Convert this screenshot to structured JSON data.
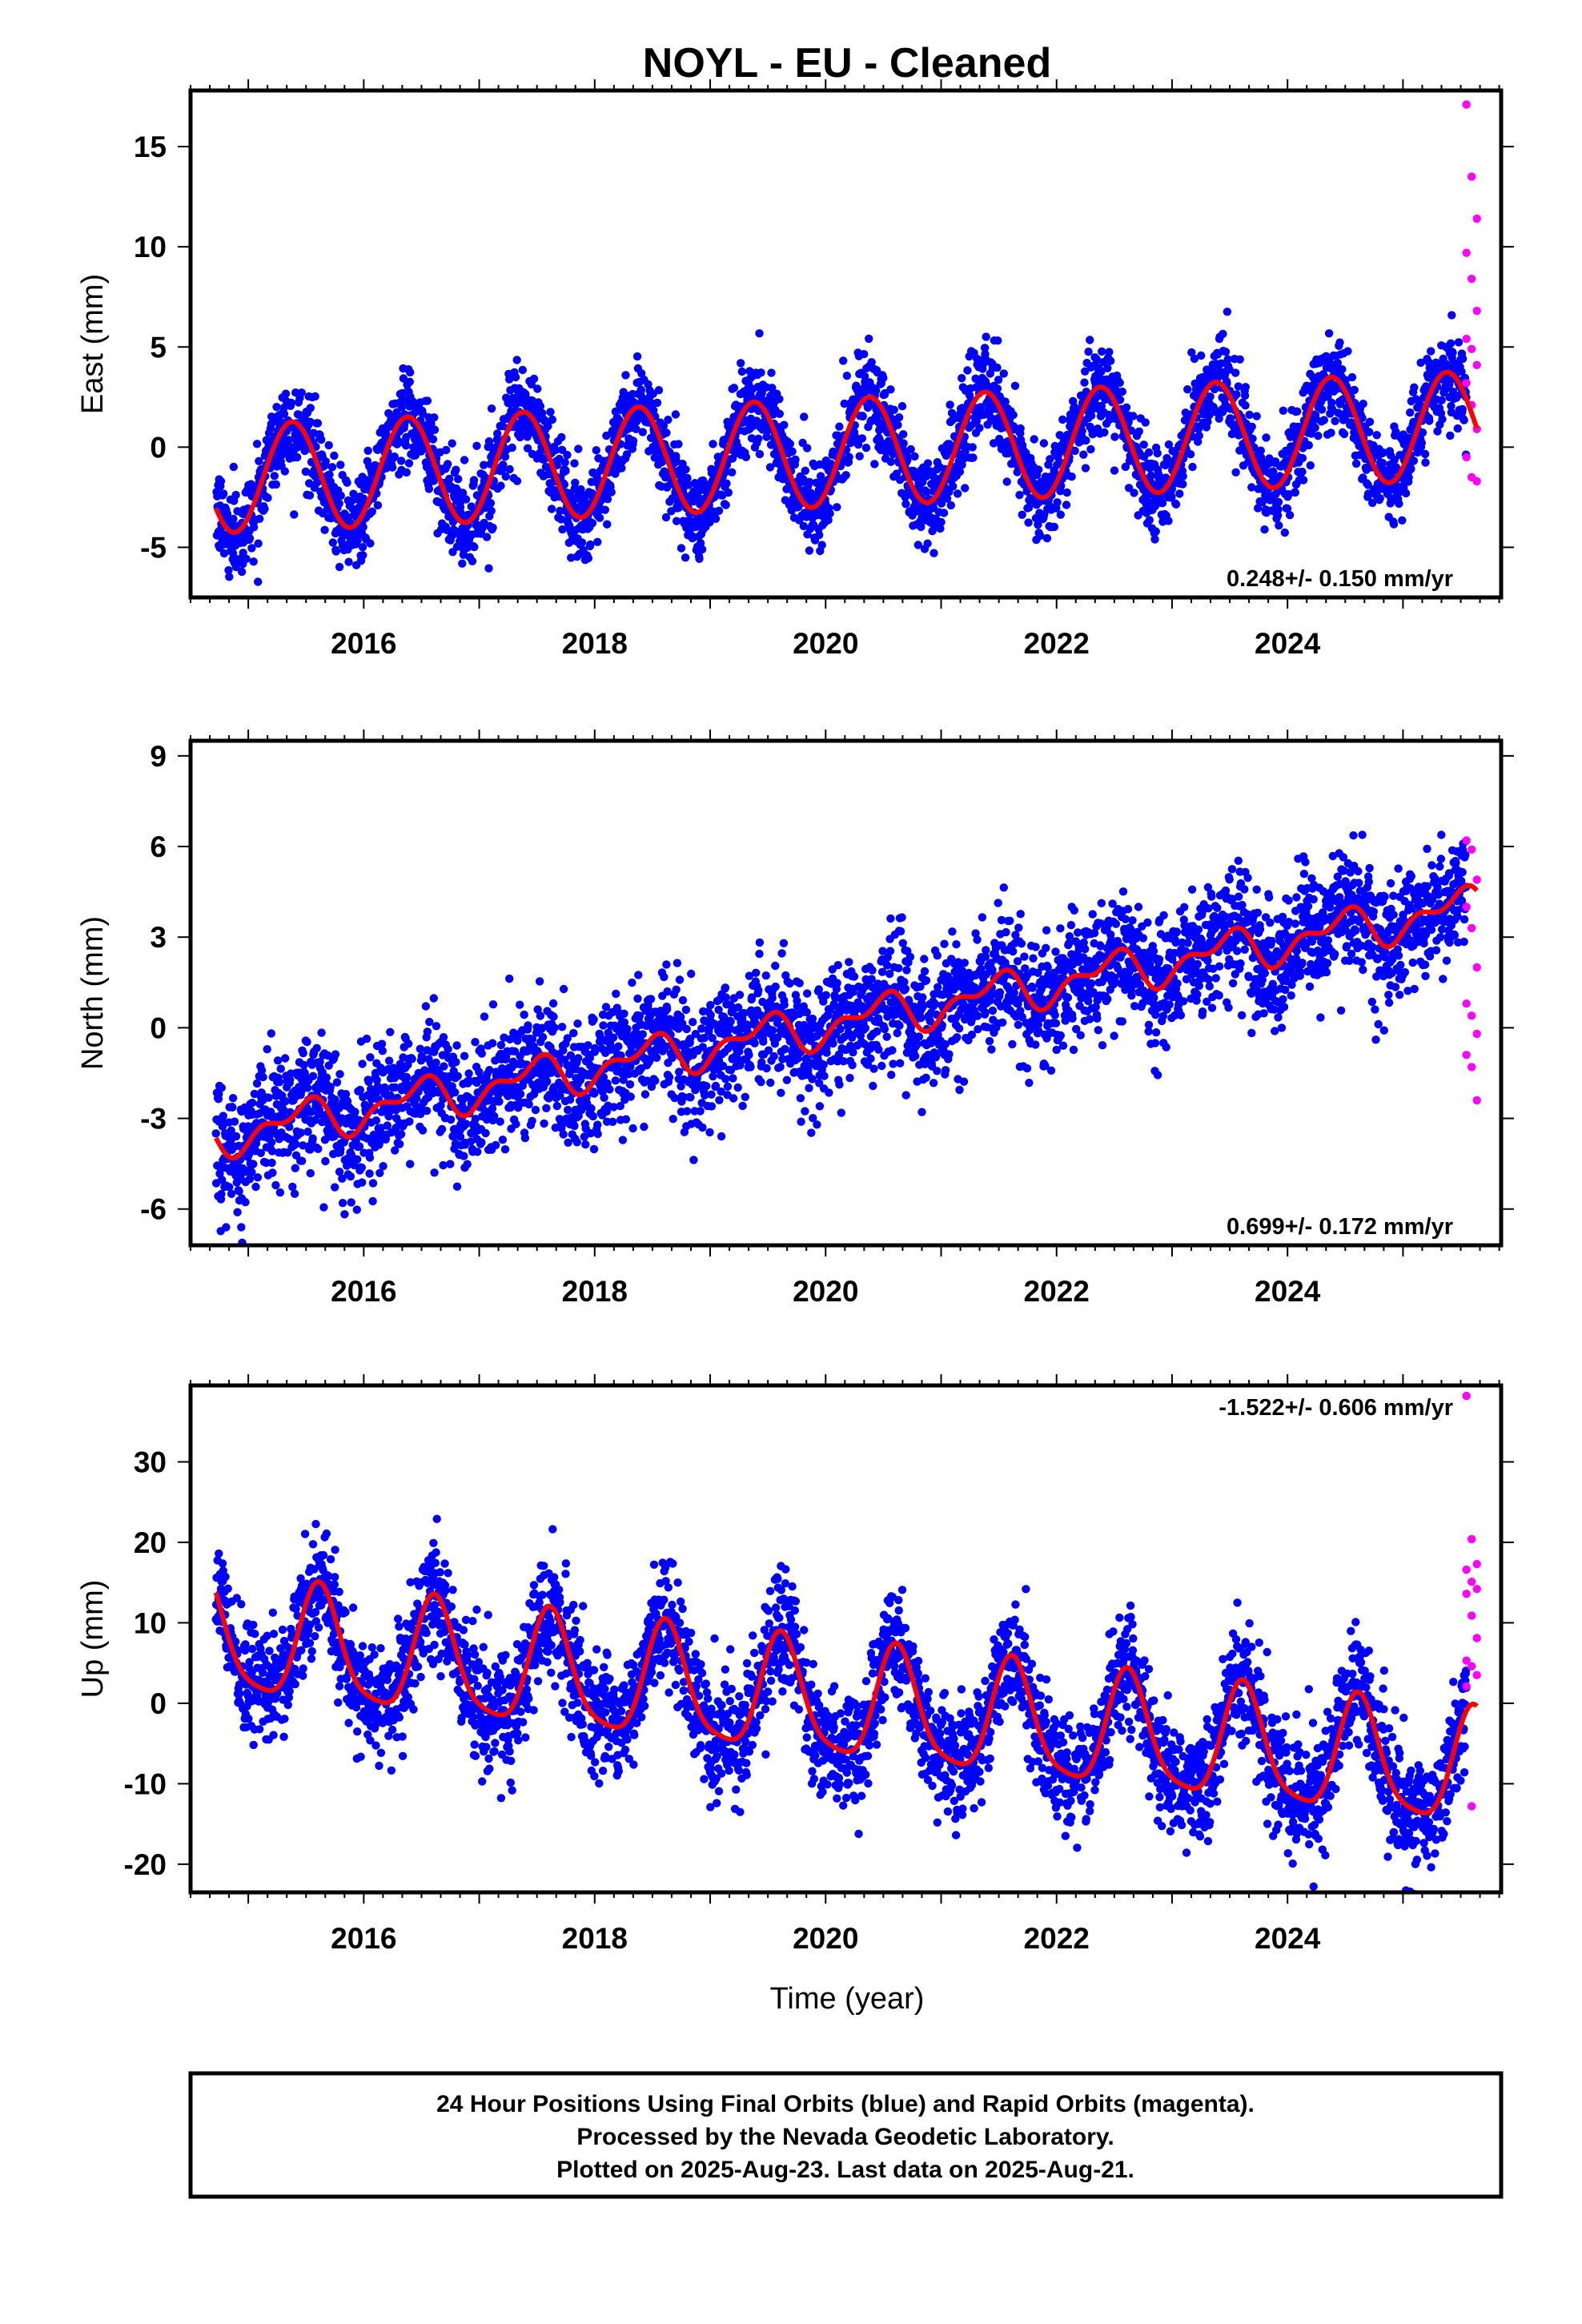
{
  "title": "NOYL  - EU - Cleaned",
  "xlabel": "Time (year)",
  "colors": {
    "final": "#0000ff",
    "rapid": "#ff00ff",
    "model": "#ff0000",
    "frame": "#000000"
  },
  "footer": {
    "line1": "24 Hour Positions Using Final Orbits (blue) and Rapid Orbits (magenta).",
    "line2": "Processed by the Nevada Geodetic Laboratory.",
    "line3": "Plotted on 2025-Aug-23. Last data on 2025-Aug-21."
  },
  "chart_data": [
    {
      "type": "scatter",
      "component": "East",
      "ylabel": "East (mm)",
      "xlim": [
        2014.5,
        2025.85
      ],
      "ylim": [
        -7.5,
        17.8
      ],
      "xticks": [
        2016,
        2018,
        2020,
        2022,
        2024
      ],
      "yticks": [
        -5,
        0,
        5,
        10,
        15
      ],
      "rate_label": "0.248+/- 0.150 mm/yr",
      "final_range": [
        2014.72,
        2025.55
      ],
      "rapid_range": [
        2025.55,
        2025.64
      ],
      "model": {
        "t0": 2014.72,
        "offset": -1.6,
        "rate": 0.248,
        "annual_amp": 2.7,
        "annual_peak": 0.38,
        "semiannual_amp": 0.0,
        "semiannual_peak": 0.0
      },
      "noise_sd": 1.1,
      "rapid_points": [
        17.1,
        13.5,
        11.4,
        9.7,
        8.4,
        6.8,
        5.4,
        4.9,
        4.1,
        3.2,
        2.1,
        0.9,
        -0.5,
        -1.5,
        -1.7
      ],
      "series": [
        {
          "name": "Final Orbits (blue)",
          "marker": "point"
        },
        {
          "name": "Rapid Orbits (magenta)",
          "marker": "point"
        }
      ]
    },
    {
      "type": "scatter",
      "component": "North",
      "ylabel": "North (mm)",
      "xlim": [
        2014.5,
        2025.85
      ],
      "ylim": [
        -7.2,
        9.5
      ],
      "xticks": [
        2016,
        2018,
        2020,
        2022,
        2024
      ],
      "yticks": [
        -6,
        -3,
        0,
        3,
        6,
        9
      ],
      "rate_label": "0.699+/- 0.172 mm/yr",
      "final_range": [
        2014.72,
        2025.55
      ],
      "rapid_range": [
        2025.55,
        2025.64
      ],
      "model": {
        "t0": 2014.72,
        "offset": -3.6,
        "rate": 0.699,
        "annual_amp": 0.55,
        "annual_peak": 0.45,
        "semiannual_amp": 0.35,
        "semiannual_peak": 0.1
      },
      "noise_sd": 1.0,
      "rapid_points": [
        6.2,
        5.9,
        4.9,
        4.0,
        3.3,
        2.0,
        0.8,
        0.4,
        -0.2,
        -0.9,
        -1.3,
        -2.4
      ],
      "series": [
        {
          "name": "Final Orbits (blue)",
          "marker": "point"
        },
        {
          "name": "Rapid Orbits (magenta)",
          "marker": "point"
        }
      ]
    },
    {
      "type": "scatter",
      "component": "Up",
      "ylabel": "Up (mm)",
      "xlim": [
        2014.5,
        2025.85
      ],
      "ylim": [
        -23.5,
        39.5
      ],
      "xticks": [
        2016,
        2018,
        2020,
        2022,
        2024
      ],
      "yticks": [
        -20,
        -10,
        0,
        10,
        20,
        30
      ],
      "rate_label": "-1.522+/- 0.606 mm/yr",
      "final_range": [
        2014.72,
        2025.55
      ],
      "rapid_range": [
        2025.55,
        2025.64
      ],
      "model": {
        "t0": 2014.72,
        "offset": 8.0,
        "rate": -1.522,
        "annual_amp": 7.0,
        "annual_peak": 0.62,
        "semiannual_amp": 1.5,
        "semiannual_peak": 0.1
      },
      "noise_sd": 3.6,
      "rapid_points": [
        38.2,
        20.4,
        17.3,
        16.6,
        15.1,
        14.2,
        13.6,
        10.9,
        8.1,
        5.3,
        4.6,
        3.5,
        2.1,
        -12.8
      ],
      "series": [
        {
          "name": "Final Orbits (blue)",
          "marker": "point"
        },
        {
          "name": "Rapid Orbits (magenta)",
          "marker": "point"
        }
      ]
    }
  ]
}
